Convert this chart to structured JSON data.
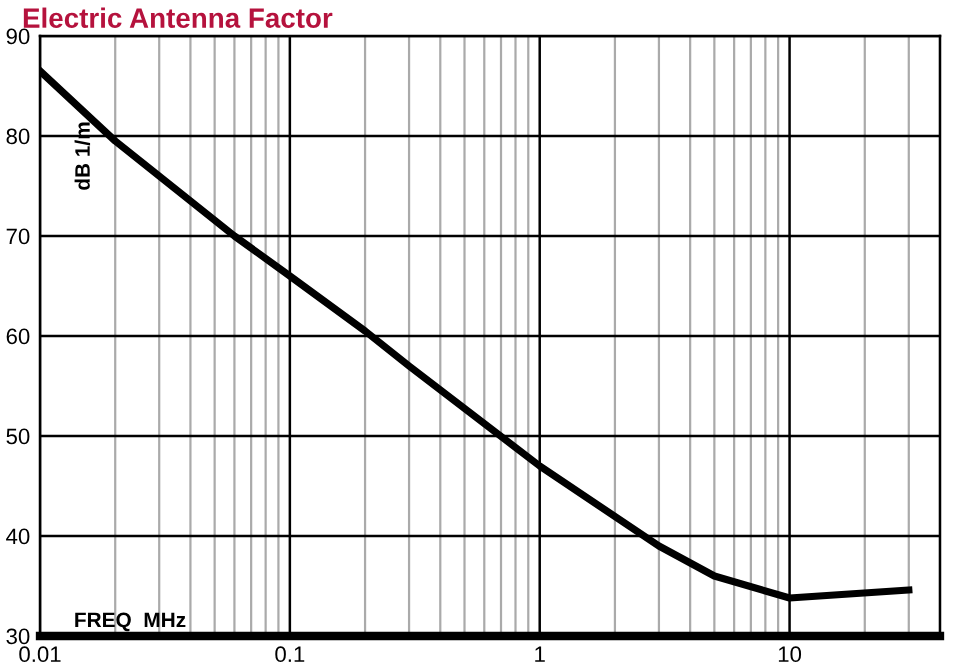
{
  "chart_data": {
    "type": "line",
    "title": "Electric Antenna Factor",
    "xlabel": "FREQ  MHz",
    "ylabel": "dB 1/m",
    "x": [
      0.01,
      0.02,
      0.06,
      0.1,
      0.2,
      0.3,
      1,
      3,
      5,
      10,
      30
    ],
    "series": [
      {
        "color": "#000000",
        "values": [
          86.5,
          79.5,
          70,
          66,
          60.5,
          57,
          47,
          39,
          36,
          33.8,
          34.6
        ]
      }
    ],
    "log": "x",
    "xlim": [
      0.01,
      40
    ],
    "xticks": [
      0.01,
      0.1,
      1,
      10
    ],
    "ylim": [
      30,
      90
    ],
    "yticks": [
      30,
      40,
      50,
      60,
      70,
      80,
      90
    ],
    "grid": true,
    "marker": "none",
    "line_style": "solid"
  }
}
